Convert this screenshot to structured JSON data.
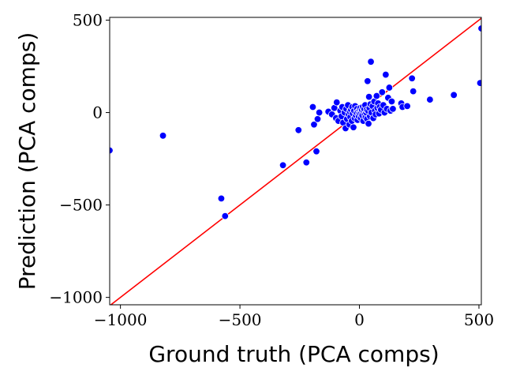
{
  "chart_data": {
    "type": "scatter",
    "xlabel": "Ground truth (PCA comps)",
    "ylabel": "Prediction (PCA comps)",
    "xlim": [
      -1045,
      510
    ],
    "ylim": [
      -1040,
      515
    ],
    "xticks": [
      -1000,
      -500,
      0,
      500
    ],
    "xtick_labels": [
      "−1000",
      "−500",
      "0",
      "500"
    ],
    "yticks": [
      -1000,
      -500,
      0,
      500
    ],
    "ytick_labels": [
      "−1000",
      "−500",
      "0",
      "500"
    ],
    "grid": false,
    "legend": "none",
    "reference_line": {
      "type": "identity",
      "color": "#ff0000"
    },
    "marker_color": "#0000ff",
    "series": [
      {
        "points": [
          [
            -1045,
            -205
          ],
          [
            -822,
            -125
          ],
          [
            -578,
            -465
          ],
          [
            -562,
            -560
          ],
          [
            -320,
            -285
          ],
          [
            -255,
            -95
          ],
          [
            -222,
            -270
          ],
          [
            -195,
            30
          ],
          [
            -190,
            -65
          ],
          [
            -180,
            -210
          ],
          [
            -175,
            -35
          ],
          [
            -168,
            0
          ],
          [
            -130,
            5
          ],
          [
            -115,
            -10
          ],
          [
            -105,
            25
          ],
          [
            -98,
            -30
          ],
          [
            -95,
            55
          ],
          [
            -88,
            -45
          ],
          [
            -80,
            10
          ],
          [
            -75,
            -20
          ],
          [
            -72,
            30
          ],
          [
            -68,
            -55
          ],
          [
            -62,
            0
          ],
          [
            -58,
            -85
          ],
          [
            -55,
            20
          ],
          [
            -52,
            -35
          ],
          [
            -48,
            40
          ],
          [
            -45,
            -10
          ],
          [
            -42,
            -65
          ],
          [
            -40,
            5
          ],
          [
            -38,
            -25
          ],
          [
            -35,
            15
          ],
          [
            -32,
            -45
          ],
          [
            -30,
            30
          ],
          [
            -28,
            -5
          ],
          [
            -25,
            -80
          ],
          [
            -22,
            10
          ],
          [
            -20,
            -30
          ],
          [
            -18,
            35
          ],
          [
            -15,
            -15
          ],
          [
            -12,
            0
          ],
          [
            -10,
            20
          ],
          [
            -8,
            -40
          ],
          [
            -5,
            5
          ],
          [
            -3,
            -20
          ],
          [
            0,
            10
          ],
          [
            2,
            -5
          ],
          [
            4,
            25
          ],
          [
            6,
            -30
          ],
          [
            8,
            0
          ],
          [
            10,
            15
          ],
          [
            12,
            -15
          ],
          [
            14,
            30
          ],
          [
            16,
            -45
          ],
          [
            18,
            5
          ],
          [
            20,
            20
          ],
          [
            22,
            -10
          ],
          [
            24,
            40
          ],
          [
            26,
            -25
          ],
          [
            28,
            0
          ],
          [
            30,
            15
          ],
          [
            32,
            -35
          ],
          [
            34,
            170
          ],
          [
            36,
            10
          ],
          [
            38,
            -60
          ],
          [
            40,
            85
          ],
          [
            42,
            25
          ],
          [
            44,
            -20
          ],
          [
            46,
            45
          ],
          [
            48,
            275
          ],
          [
            50,
            0
          ],
          [
            55,
            35
          ],
          [
            58,
            -30
          ],
          [
            62,
            60
          ],
          [
            65,
            10
          ],
          [
            68,
            -10
          ],
          [
            72,
            90
          ],
          [
            75,
            25
          ],
          [
            78,
            50
          ],
          [
            82,
            -5
          ],
          [
            85,
            30
          ],
          [
            90,
            15
          ],
          [
            95,
            110
          ],
          [
            100,
            40
          ],
          [
            105,
            0
          ],
          [
            110,
            205
          ],
          [
            115,
            20
          ],
          [
            120,
            80
          ],
          [
            125,
            135
          ],
          [
            130,
            10
          ],
          [
            135,
            60
          ],
          [
            140,
            20
          ],
          [
            175,
            50
          ],
          [
            180,
            30
          ],
          [
            200,
            35
          ],
          [
            220,
            185
          ],
          [
            225,
            115
          ],
          [
            295,
            70
          ],
          [
            395,
            95
          ],
          [
            505,
            160
          ],
          [
            510,
            455
          ]
        ]
      }
    ]
  }
}
